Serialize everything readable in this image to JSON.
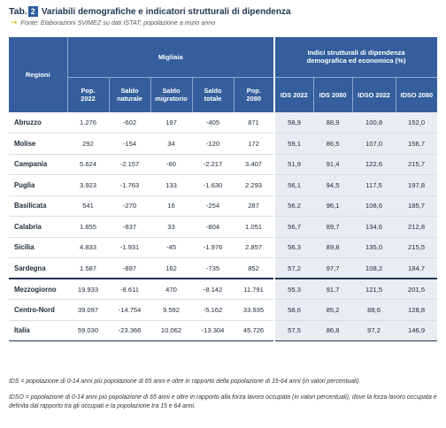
{
  "header": {
    "tab_label": "Tab.",
    "tab_number": "2",
    "title": "Variabili demografiche e indicatori strutturali di dipendenza",
    "source": "Fonte: Elaborazioni SVIMEZ su dati ISTAT; popolazione a inizio anno"
  },
  "table": {
    "regions_header": "Regioni",
    "group_migliaia": "Migliaia",
    "group_indici": "Indici strutturali di dipendenza demografica ed economica (%)",
    "columns": [
      "Pop. 2022",
      "Saldo naturale",
      "Saldo migratorio",
      "Saldo totale",
      "Pop. 2080",
      "IDS 2022",
      "IDS 2080",
      "IDSO 2022",
      "IDSO 2080"
    ],
    "rows": [
      {
        "region": "Abruzzo",
        "values": [
          "1.276",
          "-602",
          "197",
          "-405",
          "871",
          "58,9",
          "88,9",
          "100,8",
          "152,0"
        ]
      },
      {
        "region": "Molise",
        "values": [
          "292",
          "-154",
          "34",
          "-120",
          "172",
          "59,1",
          "86,5",
          "107,0",
          "156,7"
        ]
      },
      {
        "region": "Campania",
        "values": [
          "5.624",
          "-2.157",
          "-60",
          "-2.217",
          "3.407",
          "51,9",
          "91,4",
          "122,6",
          "215,7"
        ]
      },
      {
        "region": "Puglia",
        "values": [
          "3.923",
          "-1.763",
          "133",
          "-1.630",
          "2.293",
          "56,1",
          "94,5",
          "117,5",
          "197,8"
        ]
      },
      {
        "region": "Basilicata",
        "values": [
          "541",
          "-270",
          "16",
          "-254",
          "287",
          "56,2",
          "96,1",
          "108,6",
          "185,7"
        ]
      },
      {
        "region": "Calabria",
        "values": [
          "1.855",
          "-837",
          "33",
          "-804",
          "1.051",
          "56,7",
          "89,7",
          "134,6",
          "212,8"
        ]
      },
      {
        "region": "Sicilia",
        "values": [
          "4.833",
          "-1.931",
          "-45",
          "-1.976",
          "2.857",
          "56,3",
          "89,8",
          "135,0",
          "215,5"
        ]
      },
      {
        "region": "Sardegna",
        "values": [
          "1.587",
          "-897",
          "162",
          "-735",
          "852",
          "57,2",
          "97,7",
          "108,2",
          "184,7"
        ]
      },
      {
        "region": "Mezzogiorno",
        "values": [
          "19.933",
          "-8.611",
          "470",
          "-8.142",
          "11.791",
          "55,3",
          "91,7",
          "121,5",
          "201,5"
        ]
      },
      {
        "region": "Centro-Nord",
        "values": [
          "39.097",
          "-14.754",
          "9.592",
          "-5.162",
          "33.935",
          "58,6",
          "85,2",
          "88,6",
          "128,8"
        ]
      },
      {
        "region": "Italia",
        "values": [
          "59.030",
          "-23.366",
          "10.062",
          "-13.304",
          "45.726",
          "57,5",
          "86,8",
          "97,2",
          "146,9"
        ]
      }
    ]
  },
  "notes": {
    "ids": "IDS = popolazione di 0-14 anni più popolazione di 65 anni e oltre in rapporto della popolazione di 15-64 anni (in valori percentuali).",
    "idso": "IDSO = popolazione di 0-14 anni più popolazione di 65 anni e oltre in rapporto alla forza lavoro occupata (in valori percentuali); dove la forza lavoro occupata è definita dal rapporto tra gli occupati e la popolazione tra 15 e 64 anni."
  }
}
